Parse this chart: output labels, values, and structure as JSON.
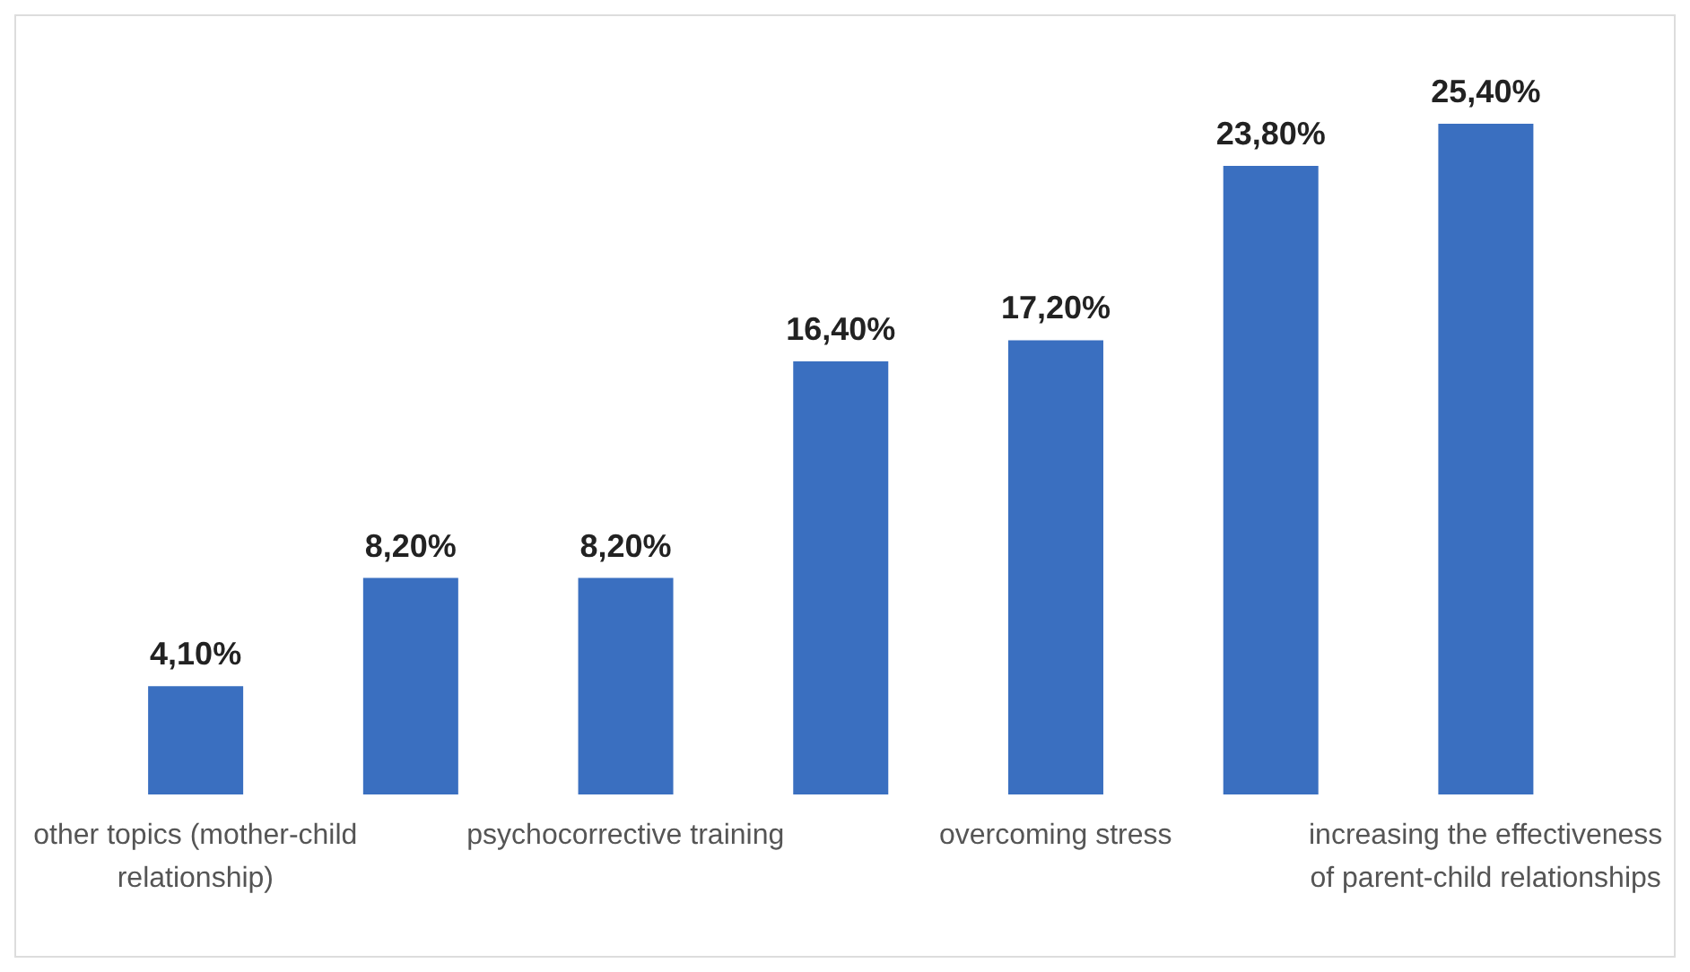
{
  "chart_data": {
    "type": "bar",
    "categories": [
      "other topics (mother-child relationship)",
      null,
      "psychocorrective training",
      null,
      "overcoming stress",
      null,
      "increasing the effectiveness of parent-child relationships"
    ],
    "values": [
      4.1,
      8.2,
      8.2,
      16.4,
      17.2,
      23.8,
      25.4
    ],
    "value_labels": [
      "4,10%",
      "8,20%",
      "8,20%",
      "16,40%",
      "17,20%",
      "23,80%",
      "25,40%"
    ],
    "color": "#3a6fc0"
  }
}
